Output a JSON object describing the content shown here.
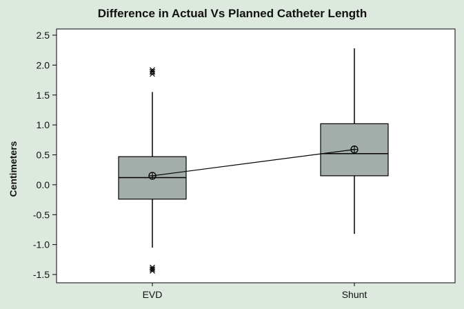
{
  "chart_data": {
    "type": "boxplot",
    "title": "Difference in Actual Vs Planned Catheter Length",
    "xlabel": "",
    "ylabel": "Centimeters",
    "ylim": [
      -1.65,
      2.6
    ],
    "yticks": [
      "2.5",
      "2.0",
      "1.5",
      "1.0",
      "0.5",
      "0.0",
      "-0.5",
      "-1.0",
      "-1.5"
    ],
    "ytick_values": [
      2.5,
      2.0,
      1.5,
      1.0,
      0.5,
      0.0,
      -0.5,
      -1.0,
      -1.5
    ],
    "categories": [
      "EVD",
      "Shunt"
    ],
    "series": [
      {
        "name": "EVD",
        "q1": -0.24,
        "median": 0.12,
        "q3": 0.47,
        "whisker_low": -1.05,
        "whisker_high": 1.55,
        "mean": 0.15,
        "outliers": [
          1.92,
          1.89,
          1.85,
          -1.38,
          -1.41,
          -1.44
        ]
      },
      {
        "name": "Shunt",
        "q1": 0.15,
        "median": 0.52,
        "q3": 1.02,
        "whisker_low": -0.82,
        "whisker_high": 2.28,
        "mean": 0.59,
        "outliers": []
      }
    ],
    "mean_line": true,
    "colors": {
      "box_fill": "#a3adaa",
      "line": "#000000",
      "background": "#dde8de",
      "plot_bg": "#ffffff"
    }
  }
}
